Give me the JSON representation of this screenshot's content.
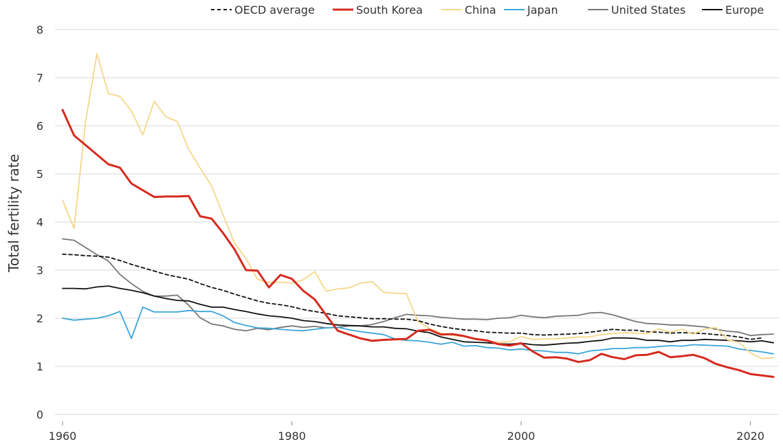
{
  "chart_data": {
    "type": "line",
    "title": "",
    "xlabel": "",
    "ylabel": "Total fertility rate",
    "xlim": [
      1960,
      2022
    ],
    "ylim": [
      0,
      8
    ],
    "grid": "horizontal",
    "legend_position": "top",
    "x_ticks": [
      1960,
      1980,
      2000,
      2020
    ],
    "y_ticks": [
      0,
      1,
      2,
      3,
      4,
      5,
      6,
      7,
      8
    ],
    "x": [
      1960,
      1961,
      1962,
      1963,
      1964,
      1965,
      1966,
      1967,
      1968,
      1969,
      1970,
      1971,
      1972,
      1973,
      1974,
      1975,
      1976,
      1977,
      1978,
      1979,
      1980,
      1981,
      1982,
      1983,
      1984,
      1985,
      1986,
      1987,
      1988,
      1989,
      1990,
      1991,
      1992,
      1993,
      1994,
      1995,
      1996,
      1997,
      1998,
      1999,
      2000,
      2001,
      2002,
      2003,
      2004,
      2005,
      2006,
      2007,
      2008,
      2009,
      2010,
      2011,
      2012,
      2013,
      2014,
      2015,
      2016,
      2017,
      2018,
      2019,
      2020,
      2021,
      2022
    ],
    "series": [
      {
        "name": "OECD average",
        "color": "#111111",
        "dash": "dashed",
        "values": [
          3.33,
          3.32,
          3.3,
          3.29,
          3.27,
          3.2,
          3.12,
          3.05,
          2.98,
          2.91,
          2.86,
          2.81,
          2.72,
          2.64,
          2.58,
          2.5,
          2.43,
          2.36,
          2.31,
          2.28,
          2.24,
          2.18,
          2.14,
          2.1,
          2.05,
          2.03,
          2.01,
          1.99,
          1.99,
          1.98,
          1.98,
          1.95,
          1.88,
          1.83,
          1.79,
          1.76,
          1.74,
          1.71,
          1.7,
          1.69,
          1.69,
          1.66,
          1.65,
          1.66,
          1.67,
          1.68,
          1.71,
          1.74,
          1.77,
          1.75,
          1.75,
          1.72,
          1.71,
          1.69,
          1.7,
          1.69,
          1.68,
          1.66,
          1.64,
          1.61,
          1.56,
          1.59,
          null
        ]
      },
      {
        "name": "South Korea",
        "color": "#d62a1f",
        "dash": "solid",
        "values": [
          6.33,
          5.8,
          5.6,
          5.4,
          5.2,
          5.13,
          4.8,
          4.66,
          4.52,
          4.53,
          4.53,
          4.54,
          4.12,
          4.07,
          3.77,
          3.43,
          3.0,
          2.99,
          2.64,
          2.9,
          2.82,
          2.57,
          2.39,
          2.06,
          1.74,
          1.66,
          1.58,
          1.53,
          1.55,
          1.56,
          1.57,
          1.74,
          1.76,
          1.66,
          1.67,
          1.63,
          1.57,
          1.54,
          1.46,
          1.43,
          1.48,
          1.31,
          1.18,
          1.19,
          1.16,
          1.09,
          1.13,
          1.26,
          1.19,
          1.15,
          1.23,
          1.24,
          1.3,
          1.19,
          1.21,
          1.24,
          1.17,
          1.05,
          0.98,
          0.92,
          0.84,
          0.81,
          0.78
        ]
      },
      {
        "name": "China",
        "color": "#f5d78a",
        "dash": "solid",
        "values": [
          4.45,
          3.87,
          6.08,
          7.5,
          6.67,
          6.61,
          6.31,
          5.81,
          6.51,
          6.19,
          6.09,
          5.51,
          5.12,
          4.75,
          4.15,
          3.56,
          3.24,
          2.81,
          2.74,
          2.75,
          2.73,
          2.8,
          2.97,
          2.56,
          2.61,
          2.63,
          2.73,
          2.76,
          2.54,
          2.52,
          2.51,
          1.93,
          1.79,
          1.69,
          1.64,
          1.62,
          1.56,
          1.53,
          1.5,
          1.51,
          1.62,
          1.56,
          1.57,
          1.57,
          1.59,
          1.61,
          1.61,
          1.66,
          1.68,
          1.7,
          1.69,
          1.68,
          1.78,
          1.71,
          1.77,
          1.67,
          1.77,
          1.81,
          1.55,
          1.5,
          1.28,
          1.16,
          1.18
        ]
      },
      {
        "name": "Japan",
        "color": "#3aa5d9",
        "dash": "solid",
        "values": [
          2.0,
          1.96,
          1.98,
          2.0,
          2.05,
          2.14,
          1.58,
          2.23,
          2.13,
          2.13,
          2.13,
          2.16,
          2.14,
          2.14,
          2.05,
          1.91,
          1.85,
          1.8,
          1.79,
          1.77,
          1.75,
          1.74,
          1.77,
          1.8,
          1.81,
          1.76,
          1.72,
          1.69,
          1.66,
          1.57,
          1.54,
          1.53,
          1.5,
          1.46,
          1.5,
          1.42,
          1.43,
          1.39,
          1.38,
          1.34,
          1.36,
          1.33,
          1.32,
          1.29,
          1.29,
          1.26,
          1.32,
          1.34,
          1.37,
          1.37,
          1.39,
          1.39,
          1.41,
          1.43,
          1.42,
          1.45,
          1.44,
          1.43,
          1.42,
          1.36,
          1.33,
          1.3,
          1.26
        ]
      },
      {
        "name": "United States",
        "color": "#777777",
        "dash": "solid",
        "values": [
          3.65,
          3.62,
          3.47,
          3.32,
          3.19,
          2.91,
          2.72,
          2.56,
          2.46,
          2.46,
          2.48,
          2.27,
          2.01,
          1.88,
          1.84,
          1.77,
          1.74,
          1.79,
          1.76,
          1.81,
          1.84,
          1.81,
          1.83,
          1.8,
          1.81,
          1.84,
          1.84,
          1.87,
          1.93,
          2.01,
          2.08,
          2.06,
          2.05,
          2.02,
          2.0,
          1.98,
          1.98,
          1.97,
          2.0,
          2.01,
          2.06,
          2.03,
          2.01,
          2.04,
          2.05,
          2.06,
          2.11,
          2.12,
          2.07,
          2.0,
          1.93,
          1.89,
          1.88,
          1.86,
          1.86,
          1.84,
          1.82,
          1.77,
          1.73,
          1.71,
          1.64,
          1.66,
          1.67
        ]
      },
      {
        "name": "Europe",
        "color": "#111111",
        "dash": "solid",
        "values": [
          2.62,
          2.62,
          2.61,
          2.65,
          2.67,
          2.62,
          2.58,
          2.53,
          2.46,
          2.41,
          2.37,
          2.36,
          2.29,
          2.23,
          2.23,
          2.18,
          2.14,
          2.09,
          2.05,
          2.03,
          2.0,
          1.95,
          1.93,
          1.89,
          1.86,
          1.85,
          1.84,
          1.82,
          1.82,
          1.79,
          1.78,
          1.73,
          1.7,
          1.61,
          1.56,
          1.51,
          1.5,
          1.49,
          1.47,
          1.46,
          1.48,
          1.45,
          1.44,
          1.46,
          1.48,
          1.49,
          1.52,
          1.54,
          1.59,
          1.59,
          1.58,
          1.54,
          1.54,
          1.51,
          1.54,
          1.54,
          1.56,
          1.55,
          1.54,
          1.53,
          1.51,
          1.53,
          1.49
        ]
      }
    ]
  }
}
